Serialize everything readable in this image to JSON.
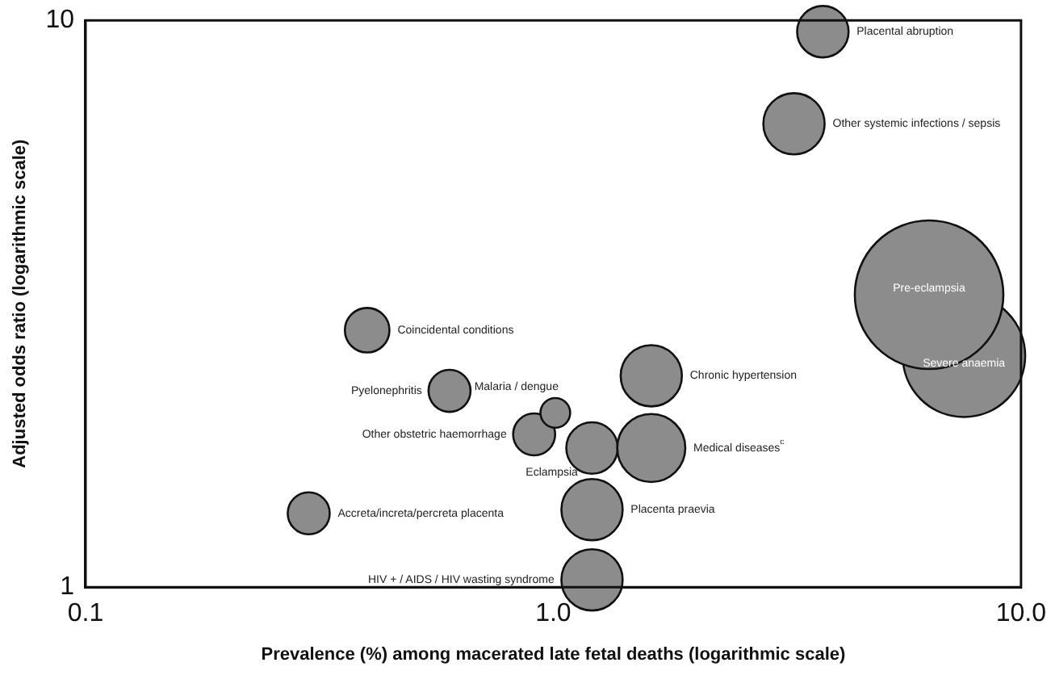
{
  "chart_data": {
    "type": "bubble",
    "xlabel": "Prevalence (%) among macerated late fetal deaths (logarithmic scale)",
    "ylabel": "Adjusted odds ratio (logarithmic scale)",
    "log": "xy",
    "xlim": [
      0.1,
      10
    ],
    "xticks": [
      0.1,
      {
        "value": 1,
        "label": "1.0"
      },
      {
        "value": 10,
        "label": "10.0"
      }
    ],
    "ylim": [
      1,
      10
    ],
    "yticks": [
      1,
      10
    ],
    "grid": false,
    "legend": false,
    "series": [
      {
        "name": "Placental abruption",
        "color": "#8c8c8c",
        "x": [
          3.77
        ],
        "values": [
          9.55
        ],
        "sizes": [
          0.12
        ]
      },
      {
        "name": "Other systemic infections / sepsis",
        "color": "#8c8c8c",
        "x": [
          3.27
        ],
        "values": [
          6.57
        ],
        "sizes": [
          0.17
        ]
      },
      {
        "name": "Pre-eclampsia",
        "color": "#8c8c8c",
        "x": [
          6.36
        ],
        "values": [
          3.28
        ],
        "sizes": [
          1
        ]
      },
      {
        "name": "Severe anaemia",
        "color": "#8c8c8c",
        "x": [
          7.55
        ],
        "values": [
          2.56
        ],
        "sizes": [
          0.68
        ]
      },
      {
        "name": "Chronic hypertension",
        "color": "#8c8c8c",
        "x": [
          1.62
        ],
        "values": [
          2.36
        ],
        "sizes": [
          0.17
        ]
      },
      {
        "name": "Medical diseases$^{c}$",
        "color": "#8c8c8c",
        "x": [
          1.62
        ],
        "values": [
          1.76
        ],
        "sizes": [
          0.21
        ]
      },
      {
        "name": "Eclampsia",
        "color": "#8c8c8c",
        "x": [
          1.21
        ],
        "values": [
          1.76
        ],
        "sizes": [
          0.12
        ]
      },
      {
        "name": "Malaria / dengue",
        "color": "#8c8c8c",
        "x": [
          1.01
        ],
        "values": [
          2.03
        ],
        "sizes": [
          0.04
        ]
      },
      {
        "name": "Other obstetric haemorrhage",
        "color": "#8c8c8c",
        "x": [
          0.91
        ],
        "values": [
          1.86
        ],
        "sizes": [
          0.08
        ]
      },
      {
        "name": "Placenta praevia",
        "color": "#8c8c8c",
        "x": [
          1.21
        ],
        "values": [
          1.37
        ],
        "sizes": [
          0.17
        ]
      },
      {
        "name": "HIV + / AIDS / HIV wasting syndrome",
        "color": "#8c8c8c",
        "x": [
          1.21
        ],
        "values": [
          1.03
        ],
        "sizes": [
          0.17
        ]
      },
      {
        "name": "Pyelonephritis",
        "color": "#8c8c8c",
        "x": [
          0.6
        ],
        "values": [
          2.22
        ],
        "sizes": [
          0.08
        ]
      },
      {
        "name": "Coincidental conditions",
        "color": "#8c8c8c",
        "x": [
          0.4
        ],
        "values": [
          2.84
        ],
        "sizes": [
          0.09
        ]
      },
      {
        "name": "Accreta/increta/percreta placenta",
        "color": "#8c8c8c",
        "x": [
          0.3
        ],
        "values": [
          1.35
        ],
        "sizes": [
          0.08
        ]
      }
    ]
  }
}
